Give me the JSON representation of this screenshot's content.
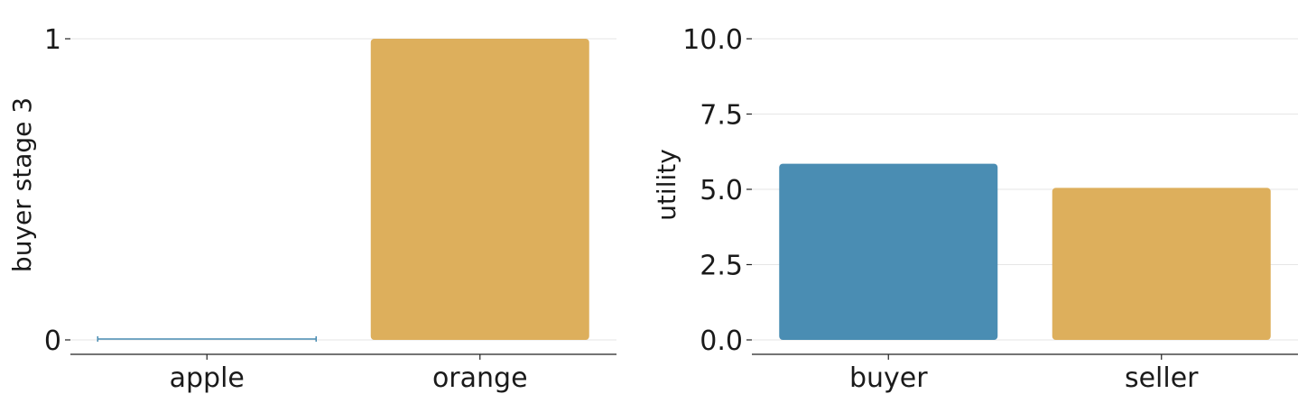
{
  "chart_data": [
    {
      "type": "bar",
      "categories": [
        "apple",
        "orange"
      ],
      "values": [
        0,
        1
      ],
      "colors": [
        "#4a8db3",
        "#ddaf5c"
      ],
      "ylabel": "buyer stage 3",
      "xlabel": "",
      "ylim": [
        0,
        1
      ],
      "yticks": [
        0,
        1
      ],
      "ytick_labels": [
        "0",
        "1"
      ],
      "grid": true
    },
    {
      "type": "bar",
      "categories": [
        "buyer",
        "seller"
      ],
      "values": [
        5.85,
        5.05
      ],
      "colors": [
        "#4a8db3",
        "#ddaf5c"
      ],
      "ylabel": "utility",
      "xlabel": "",
      "ylim": [
        0,
        10
      ],
      "yticks": [
        0,
        2.5,
        5,
        7.5,
        10
      ],
      "ytick_labels": [
        "0.0",
        "2.5",
        "5.0",
        "7.5",
        "10.0"
      ],
      "grid": true
    }
  ]
}
